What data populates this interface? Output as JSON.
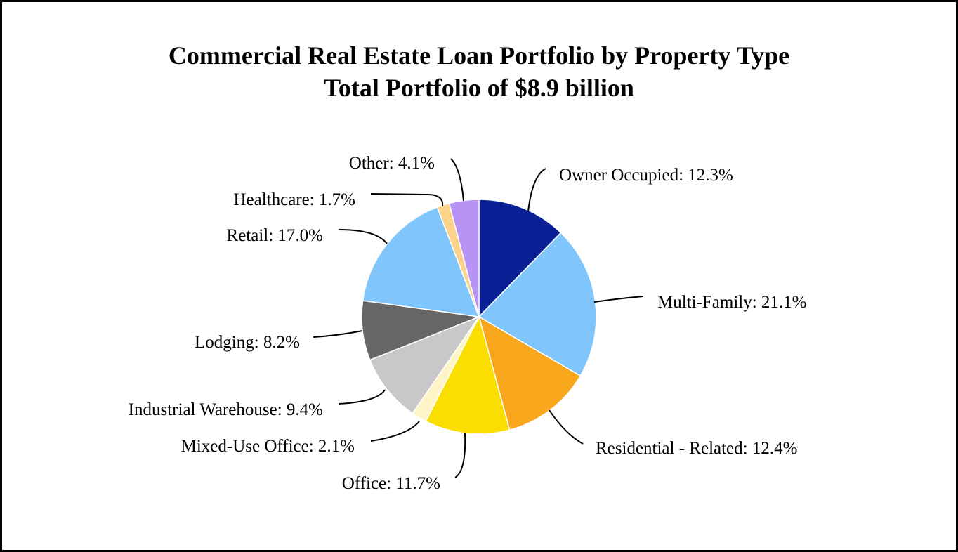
{
  "chart_data": {
    "type": "pie",
    "title": "Commercial Real Estate Loan Portfolio by Property Type",
    "subtitle": "Total Portfolio of $8.9 billion",
    "slices": [
      {
        "label": "Owner Occupied",
        "value": 12.3,
        "display": "Owner Occupied: 12.3%",
        "color": "#0a2196"
      },
      {
        "label": "Multi-Family",
        "value": 21.1,
        "display": "Multi-Family: 21.1%",
        "color": "#80c6fc"
      },
      {
        "label": "Residential - Related",
        "value": 12.4,
        "display": "Residential - Related: 12.4%",
        "color": "#f9a81d"
      },
      {
        "label": "Office",
        "value": 11.7,
        "display": "Office: 11.7%",
        "color": "#f9de00"
      },
      {
        "label": "Mixed-Use Office",
        "value": 2.1,
        "display": "Mixed-Use Office: 2.1%",
        "color": "#fff4c8"
      },
      {
        "label": "Industrial Warehouse",
        "value": 9.4,
        "display": "Industrial Warehouse: 9.4%",
        "color": "#c8c8c8"
      },
      {
        "label": "Lodging",
        "value": 8.2,
        "display": "Lodging: 8.2%",
        "color": "#666666"
      },
      {
        "label": "Retail",
        "value": 17.0,
        "display": "Retail: 17.0%",
        "color": "#80c6fc"
      },
      {
        "label": "Healthcare",
        "value": 1.7,
        "display": "Healthcare: 1.7%",
        "color": "#fdd38c"
      },
      {
        "label": "Other",
        "value": 4.1,
        "display": "Other: 4.1%",
        "color": "#b693f5"
      }
    ],
    "start_angle": "12 o'clock",
    "direction": "clockwise",
    "legend": "none"
  }
}
